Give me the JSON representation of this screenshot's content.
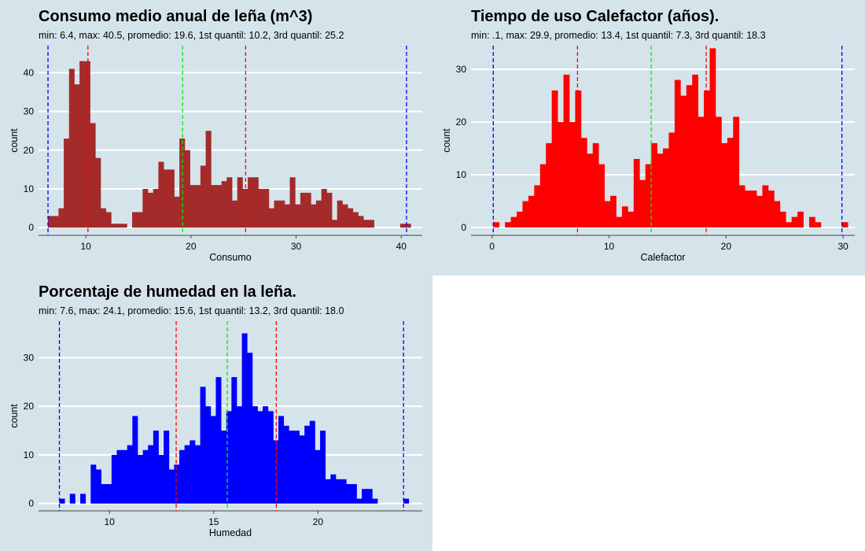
{
  "colors": {
    "panel_bg": "#d5e4eb",
    "grid": "#ffffff",
    "median_line": "#00ee00",
    "quartile_line": "#ff0000",
    "minmax_line": "#0000ff"
  },
  "chart_data": [
    {
      "type": "bar",
      "title": "Consumo medio anual de leña (m^3)",
      "subtitle": "min: 6.4, max: 40.5, promedio: 19.6, 1st quantil: 10.2, 3rd quantil: 25.2",
      "xlabel": "Consumo",
      "ylabel": "count",
      "bar_color": "#a52a2a",
      "xlim": [
        5.5,
        42.0
      ],
      "ylim": [
        -2,
        47
      ],
      "xticks": [
        10,
        20,
        30,
        40
      ],
      "yticks": [
        0,
        10,
        20,
        30,
        40
      ],
      "vlines": {
        "min": 6.4,
        "q1": 10.2,
        "median": 19.2,
        "q3": 25.2,
        "max": 40.5
      },
      "binwidth": 0.5,
      "bins": [
        [
          6.4,
          3
        ],
        [
          6.9,
          3
        ],
        [
          7.4,
          5
        ],
        [
          7.9,
          23
        ],
        [
          8.4,
          41
        ],
        [
          8.9,
          37
        ],
        [
          9.4,
          43
        ],
        [
          9.9,
          43
        ],
        [
          10.4,
          27
        ],
        [
          10.9,
          18
        ],
        [
          11.4,
          5
        ],
        [
          11.9,
          4
        ],
        [
          12.4,
          1
        ],
        [
          12.9,
          1
        ],
        [
          13.4,
          1
        ],
        [
          14.4,
          4
        ],
        [
          14.9,
          4
        ],
        [
          15.4,
          10
        ],
        [
          15.9,
          9
        ],
        [
          16.4,
          10
        ],
        [
          16.9,
          17
        ],
        [
          17.4,
          15
        ],
        [
          17.9,
          15
        ],
        [
          18.4,
          8
        ],
        [
          18.9,
          23
        ],
        [
          19.4,
          20
        ],
        [
          19.9,
          11
        ],
        [
          20.4,
          11
        ],
        [
          20.9,
          16
        ],
        [
          21.4,
          25
        ],
        [
          21.9,
          11
        ],
        [
          22.4,
          11
        ],
        [
          22.9,
          12
        ],
        [
          23.4,
          13
        ],
        [
          23.9,
          7
        ],
        [
          24.4,
          13
        ],
        [
          24.9,
          10
        ],
        [
          25.4,
          13
        ],
        [
          25.9,
          13
        ],
        [
          26.4,
          10
        ],
        [
          26.9,
          10
        ],
        [
          27.4,
          5
        ],
        [
          27.9,
          7
        ],
        [
          28.4,
          7
        ],
        [
          28.9,
          6
        ],
        [
          29.4,
          13
        ],
        [
          29.9,
          6
        ],
        [
          30.4,
          9
        ],
        [
          30.9,
          9
        ],
        [
          31.4,
          6
        ],
        [
          31.9,
          7
        ],
        [
          32.4,
          10
        ],
        [
          32.9,
          9
        ],
        [
          33.4,
          2
        ],
        [
          33.9,
          7
        ],
        [
          34.4,
          6
        ],
        [
          34.9,
          5
        ],
        [
          35.4,
          4
        ],
        [
          35.9,
          3
        ],
        [
          36.4,
          2
        ],
        [
          36.9,
          2
        ],
        [
          39.9,
          1
        ],
        [
          40.4,
          1
        ]
      ]
    },
    {
      "type": "bar",
      "title": "Tiempo de uso Calefactor (años).",
      "subtitle": "min: .1, max: 29.9, promedio: 13.4, 1st quantil: 7.3, 3rd quantil: 18.3",
      "xlabel": "Calefactor",
      "ylabel": "count",
      "bar_color": "#ff0000",
      "xlim": [
        -1.8,
        31.0
      ],
      "ylim": [
        -1.5,
        34.5
      ],
      "xticks": [
        0,
        10,
        20,
        30
      ],
      "yticks": [
        0,
        10,
        20,
        30
      ],
      "vlines": {
        "min": 0.1,
        "q1": 7.3,
        "median": 13.6,
        "q3": 18.3,
        "max": 29.9
      },
      "binwidth": 0.5,
      "bins": [
        [
          0.1,
          1
        ],
        [
          0.6,
          0
        ],
        [
          1.1,
          1
        ],
        [
          1.6,
          2
        ],
        [
          2.1,
          3
        ],
        [
          2.6,
          5
        ],
        [
          3.1,
          6
        ],
        [
          3.6,
          8
        ],
        [
          4.1,
          12
        ],
        [
          4.6,
          16
        ],
        [
          5.1,
          26
        ],
        [
          5.6,
          20
        ],
        [
          6.1,
          29
        ],
        [
          6.6,
          20
        ],
        [
          7.1,
          26
        ],
        [
          7.6,
          17
        ],
        [
          8.1,
          14
        ],
        [
          8.6,
          16
        ],
        [
          9.1,
          12
        ],
        [
          9.6,
          5
        ],
        [
          10.1,
          6
        ],
        [
          10.6,
          2
        ],
        [
          11.1,
          4
        ],
        [
          11.6,
          3
        ],
        [
          12.1,
          13
        ],
        [
          12.6,
          9
        ],
        [
          13.1,
          12
        ],
        [
          13.6,
          16
        ],
        [
          14.1,
          14
        ],
        [
          14.6,
          15
        ],
        [
          15.1,
          18
        ],
        [
          15.6,
          28
        ],
        [
          16.1,
          25
        ],
        [
          16.6,
          27
        ],
        [
          17.1,
          29
        ],
        [
          17.6,
          21
        ],
        [
          18.1,
          26
        ],
        [
          18.6,
          34
        ],
        [
          19.1,
          21
        ],
        [
          19.6,
          16
        ],
        [
          20.1,
          17
        ],
        [
          20.6,
          21
        ],
        [
          21.1,
          8
        ],
        [
          21.6,
          7
        ],
        [
          22.1,
          7
        ],
        [
          22.6,
          6
        ],
        [
          23.1,
          8
        ],
        [
          23.6,
          7
        ],
        [
          24.1,
          5
        ],
        [
          24.6,
          3
        ],
        [
          25.1,
          1
        ],
        [
          25.6,
          2
        ],
        [
          26.1,
          3
        ],
        [
          26.6,
          0
        ],
        [
          27.1,
          2
        ],
        [
          27.6,
          1
        ],
        [
          29.9,
          1
        ]
      ]
    },
    {
      "type": "bar",
      "title": "Porcentaje de humedad en la leña.",
      "subtitle": "min: 7.6, max: 24.1, promedio: 15.6, 1st quantil: 13.2, 3rd quantil: 18.0",
      "xlabel": "Humedad",
      "ylabel": "count",
      "bar_color": "#0000ff",
      "xlim": [
        6.6,
        25.0
      ],
      "ylim": [
        -1.5,
        37.5
      ],
      "xticks": [
        10,
        15,
        20
      ],
      "yticks": [
        0,
        10,
        20,
        30
      ],
      "vlines": {
        "min": 7.6,
        "q1": 13.2,
        "median": 15.65,
        "q3": 18.0,
        "max": 24.1
      },
      "binwidth": 0.25,
      "bins": [
        [
          7.6,
          1
        ],
        [
          8.1,
          2
        ],
        [
          8.6,
          2
        ],
        [
          9.1,
          8
        ],
        [
          9.35,
          7
        ],
        [
          9.6,
          4
        ],
        [
          9.85,
          4
        ],
        [
          10.1,
          10
        ],
        [
          10.35,
          11
        ],
        [
          10.6,
          11
        ],
        [
          10.85,
          12
        ],
        [
          11.1,
          18
        ],
        [
          11.35,
          10
        ],
        [
          11.6,
          11
        ],
        [
          11.85,
          12
        ],
        [
          12.1,
          15
        ],
        [
          12.35,
          10
        ],
        [
          12.6,
          15
        ],
        [
          12.85,
          7
        ],
        [
          13.1,
          8
        ],
        [
          13.35,
          11
        ],
        [
          13.6,
          12
        ],
        [
          13.85,
          13
        ],
        [
          14.1,
          12
        ],
        [
          14.35,
          24
        ],
        [
          14.6,
          20
        ],
        [
          14.85,
          18
        ],
        [
          15.1,
          26
        ],
        [
          15.35,
          15
        ],
        [
          15.6,
          19
        ],
        [
          15.85,
          26
        ],
        [
          16.1,
          20
        ],
        [
          16.35,
          35
        ],
        [
          16.6,
          31
        ],
        [
          16.85,
          20
        ],
        [
          17.1,
          19
        ],
        [
          17.35,
          20
        ],
        [
          17.6,
          19
        ],
        [
          17.85,
          13
        ],
        [
          18.1,
          18
        ],
        [
          18.35,
          16
        ],
        [
          18.6,
          15
        ],
        [
          18.85,
          15
        ],
        [
          19.1,
          14
        ],
        [
          19.35,
          16
        ],
        [
          19.6,
          17
        ],
        [
          19.85,
          11
        ],
        [
          20.1,
          15
        ],
        [
          20.35,
          5
        ],
        [
          20.6,
          6
        ],
        [
          20.85,
          5
        ],
        [
          21.1,
          5
        ],
        [
          21.35,
          4
        ],
        [
          21.6,
          4
        ],
        [
          21.85,
          1
        ],
        [
          22.1,
          3
        ],
        [
          22.35,
          3
        ],
        [
          22.6,
          1
        ],
        [
          24.1,
          1
        ]
      ]
    }
  ]
}
